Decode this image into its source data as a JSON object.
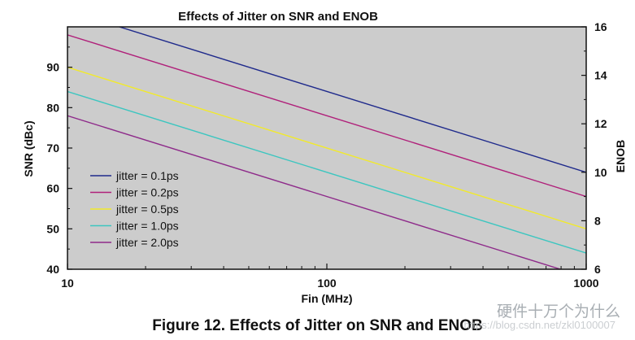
{
  "chart_data": {
    "type": "line",
    "title": "Effects of Jitter on SNR and ENOB",
    "xlabel": "Fin (MHz)",
    "ylabel": "SNR (dBc)",
    "y2label": "ENOB",
    "xscale": "log",
    "xlim": [
      10,
      1000
    ],
    "ylim": [
      40,
      100
    ],
    "y2lim": [
      6,
      16
    ],
    "x_ticks": [
      "10",
      "100",
      "1000"
    ],
    "y_ticks": [
      "40",
      "50",
      "60",
      "70",
      "80",
      "90"
    ],
    "y2_ticks": [
      "6",
      "8",
      "10",
      "12",
      "14",
      "16"
    ],
    "grid": false,
    "legend_position": "bottom-left",
    "series": [
      {
        "name": "jitter = 0.1ps",
        "color": "#1f2a8c",
        "x": [
          10,
          1000
        ],
        "y": [
          104.0,
          64.0
        ]
      },
      {
        "name": "jitter = 0.2ps",
        "color": "#b0207a",
        "x": [
          10,
          1000
        ],
        "y": [
          98.0,
          58.0
        ]
      },
      {
        "name": "jitter = 0.5ps",
        "color": "#f2ea2a",
        "x": [
          10,
          1000
        ],
        "y": [
          90.0,
          50.0
        ]
      },
      {
        "name": "jitter = 1.0ps",
        "color": "#3cc6c0",
        "x": [
          10,
          1000
        ],
        "y": [
          84.0,
          44.0
        ]
      },
      {
        "name": "jitter = 2.0ps",
        "color": "#8e2a8a",
        "x": [
          10,
          1000
        ],
        "y": [
          78.0,
          38.0
        ]
      }
    ]
  },
  "caption": "Figure 12. Effects of Jitter on SNR and ENOB",
  "watermark": "硬件十万个为什么",
  "watermark_url": "https://blog.csdn.net/zkl0100007",
  "colors": {
    "plot_background": "#cccccc",
    "text": "#111111"
  }
}
